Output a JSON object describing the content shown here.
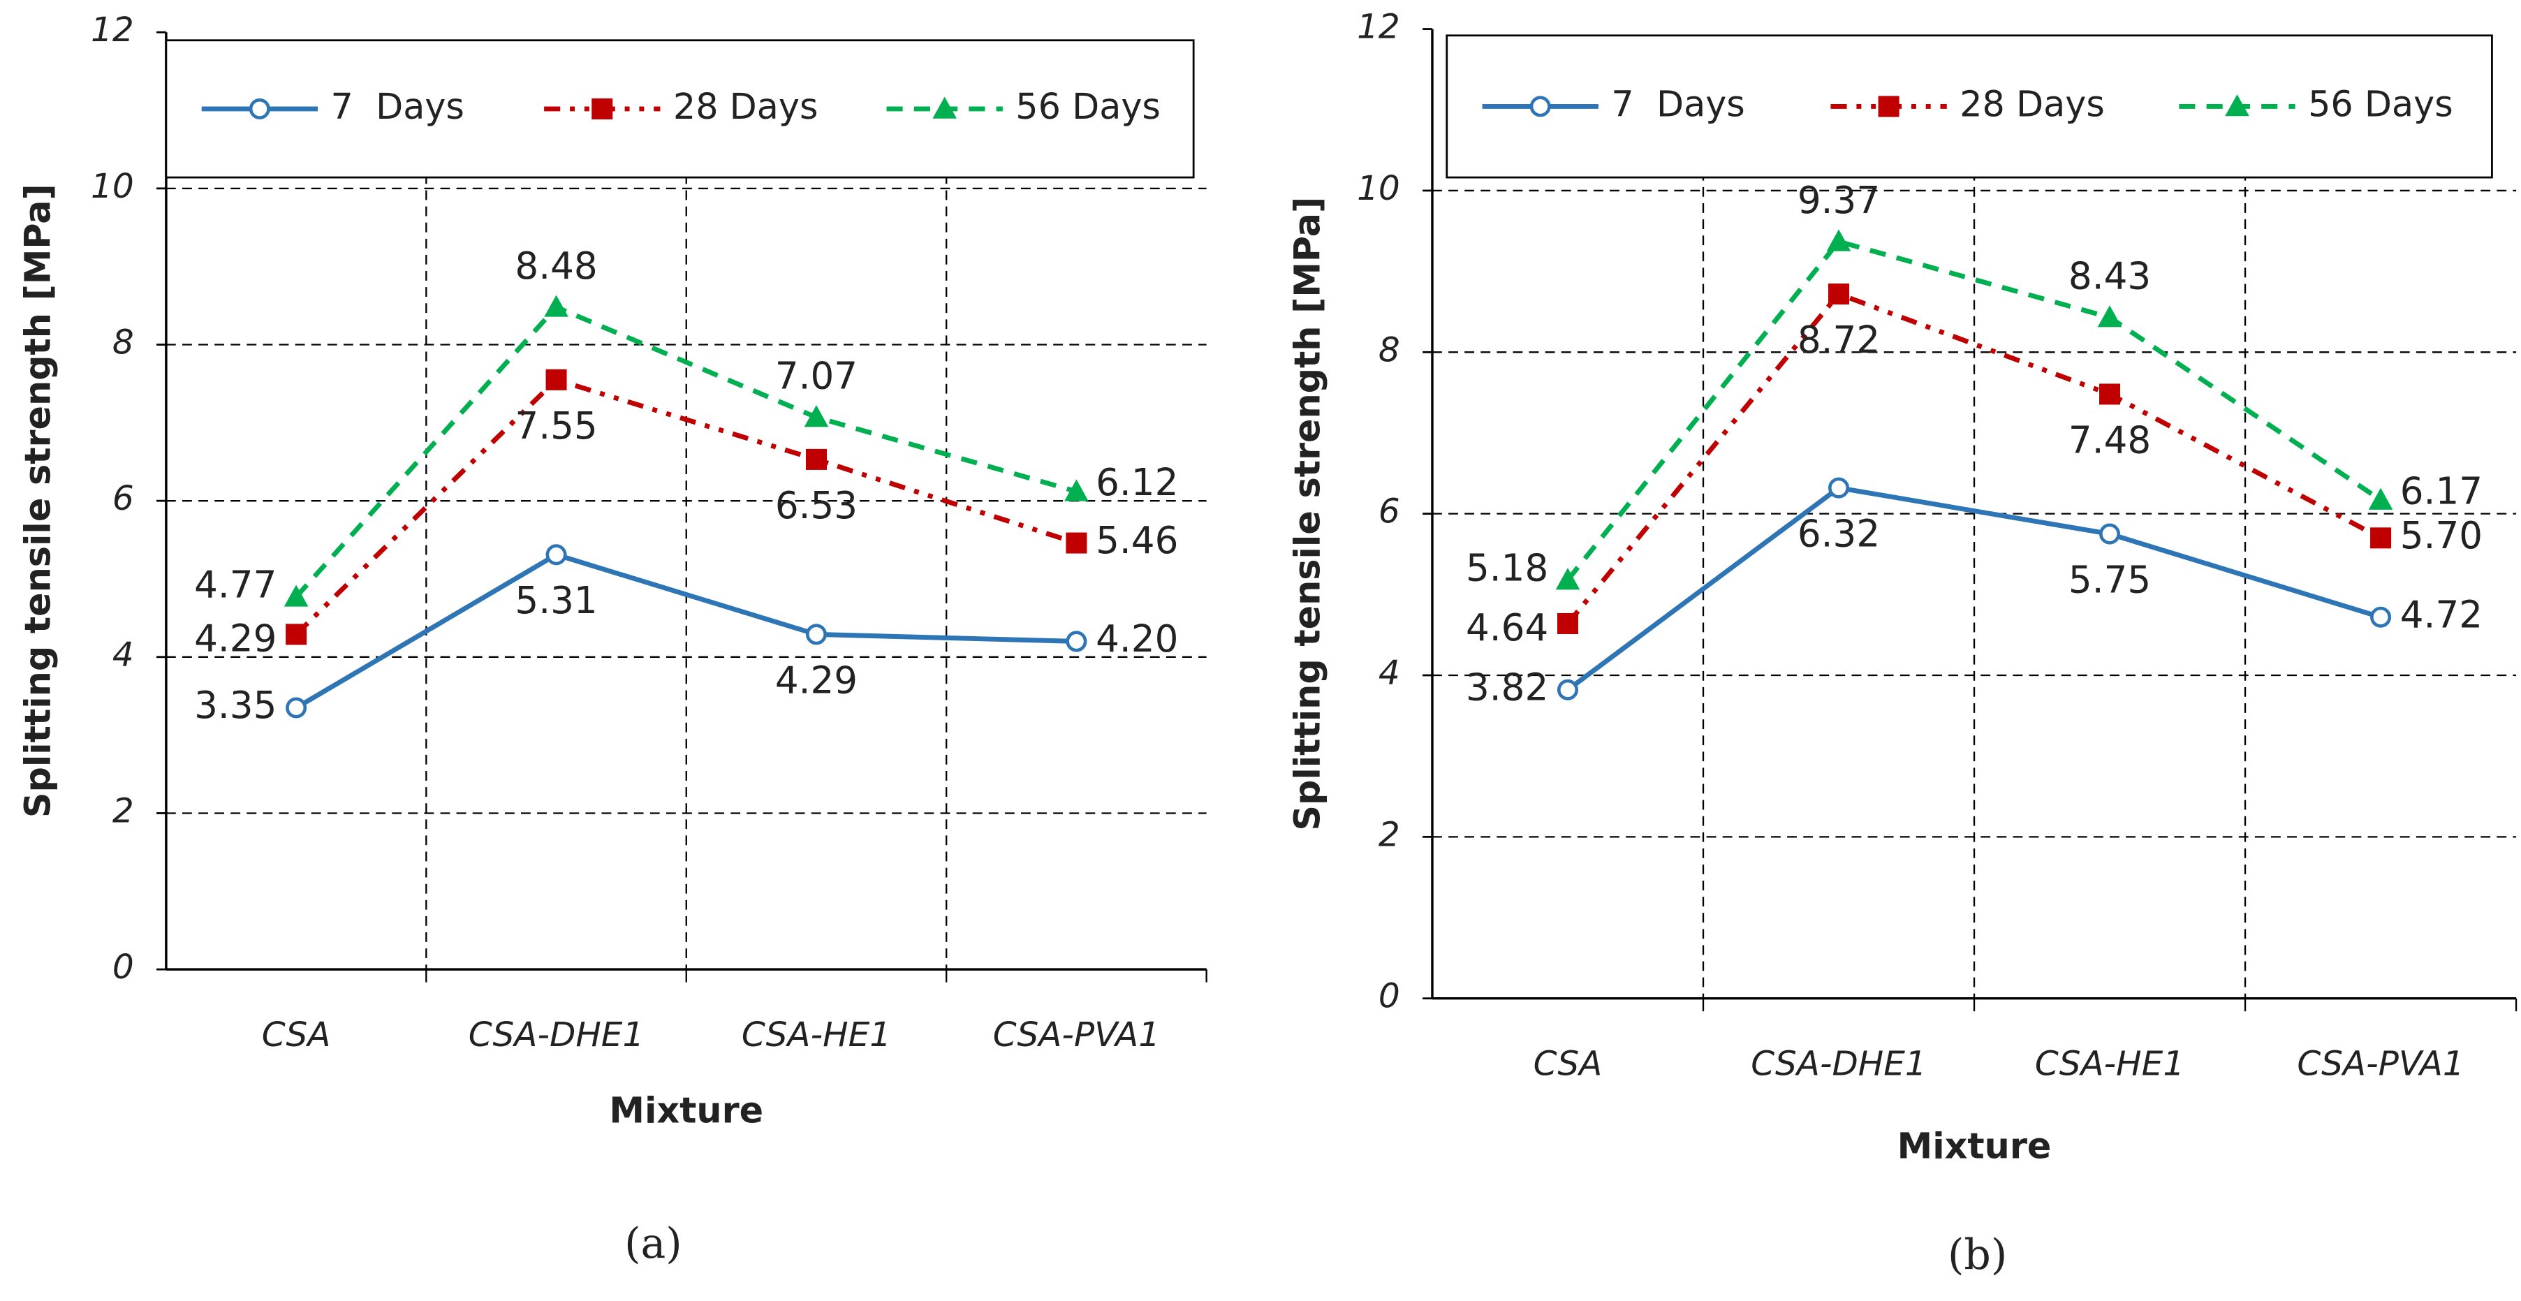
{
  "chart_data": [
    {
      "type": "line",
      "caption": "(a)",
      "x_label": "Mixture",
      "y_label": "Splitting tensile strength [MPa]",
      "categories": [
        "CSA",
        "CSA-DHE1",
        "CSA-HE1",
        "CSA-PVA1"
      ],
      "series": [
        {
          "name": "7  Days",
          "color": "#2e75b6",
          "values": [
            3.35,
            5.31,
            4.29,
            4.2
          ],
          "value_labels": [
            "3.35",
            "5.31",
            "4.29",
            "4.20"
          ]
        },
        {
          "name": "28 Days",
          "color": "#c00000",
          "values": [
            4.29,
            7.55,
            6.53,
            5.46
          ],
          "value_labels": [
            "4.29",
            "7.55",
            "6.53",
            "5.46"
          ]
        },
        {
          "name": "56 Days",
          "color": "#00b050",
          "values": [
            4.77,
            8.48,
            7.07,
            6.12
          ],
          "value_labels": [
            "4.77",
            "8.48",
            "7.07",
            "6.12"
          ]
        }
      ],
      "ylim": [
        0,
        12
      ],
      "yticks": [
        0,
        2,
        4,
        6,
        8,
        10,
        12
      ],
      "grid": true,
      "legend": "top"
    },
    {
      "type": "line",
      "caption": "(b)",
      "x_label": "Mixture",
      "y_label": "Splitting tensile strength [MPa]",
      "categories": [
        "CSA",
        "CSA-DHE1",
        "CSA-HE1",
        "CSA-PVA1"
      ],
      "series": [
        {
          "name": "7  Days",
          "color": "#2e75b6",
          "values": [
            3.82,
            6.32,
            5.75,
            4.72
          ],
          "value_labels": [
            "3.82",
            "6.32",
            "5.75",
            "4.72"
          ]
        },
        {
          "name": "28 Days",
          "color": "#c00000",
          "values": [
            4.64,
            8.72,
            7.48,
            5.7
          ],
          "value_labels": [
            "4.64",
            "8.72",
            "7.48",
            "5.70"
          ]
        },
        {
          "name": "56 Days",
          "color": "#00b050",
          "values": [
            5.18,
            9.37,
            8.43,
            6.17
          ],
          "value_labels": [
            "5.18",
            "9.37",
            "8.43",
            "6.17"
          ]
        }
      ],
      "ylim": [
        0,
        12
      ],
      "yticks": [
        0,
        2,
        4,
        6,
        8,
        10,
        12
      ],
      "grid": true,
      "legend": "top"
    }
  ]
}
